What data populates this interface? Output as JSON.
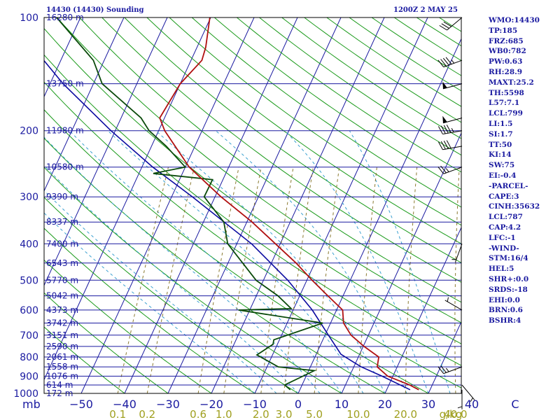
{
  "header": {
    "station_title": "14430 (14430) Sounding",
    "time_label": "1200Z  2 MAY 25"
  },
  "indices": [
    "WMO:14430",
    "TP:185",
    "FRZ:685",
    "WB0:782",
    "PW:0.63",
    "RH:28.9",
    "MAXT:25.2",
    "TH:5598",
    "L57:7.1",
    "LCL:799",
    "LI:1.5",
    "SI:1.7",
    "TT:50",
    "KI:14",
    "SW:75",
    "EI:-0.4",
    "-PARCEL-",
    "CAPE:3",
    "CINH:35632",
    "LCL:787",
    "CAP:4.2",
    "LFC:-1",
    "-WIND-",
    "STM:16/4",
    "HEL:5",
    "SHR+:0.0",
    "SRDS:-18",
    "EHI:0.0",
    "BRN:0.6",
    "BSHR:4"
  ],
  "colors": {
    "temperature": "#b01010",
    "dewpoint": "#0a4a0a",
    "parcel": "#0a0aa0",
    "isobar": "#1a1aa0",
    "isotherm": "#1a1aa0",
    "dry_adiabat": "#1a9a1a",
    "moist_adiabat": "#3aa0d0",
    "mixing_ratio": "#8a7a30",
    "labels": "#1a1aa0",
    "mixing_labels": "#a0a020"
  },
  "chart_data": {
    "type": "skew-t",
    "ylim": [
      1000,
      100
    ],
    "xlim": [
      -50,
      50
    ],
    "pressure_axis_label": "mb",
    "mixing_ratio_unit": "g/kg",
    "pressure_ticks": [
      100,
      200,
      300,
      400,
      500,
      600,
      700,
      800,
      900,
      1000
    ],
    "temperature_ticks": [
      -50,
      -40,
      -30,
      -20,
      -10,
      0,
      10,
      20,
      30,
      40,
      50
    ],
    "temperature_tick_labels": [
      "−50",
      "−40",
      "−30",
      "−20",
      "−10",
      "0",
      "10",
      "20",
      "30",
      "40",
      "C"
    ],
    "mixing_ratio_labels": [
      "0.1",
      "0.2",
      "0.6",
      "1.0",
      "2.0",
      "3.0",
      "5.0",
      "10.0",
      "20.0",
      "40.0"
    ],
    "mixing_ratio_values": [
      0.1,
      0.2,
      0.6,
      1.0,
      2.0,
      3.0,
      5.0,
      10.0,
      20.0,
      40.0
    ],
    "heights": [
      {
        "p": 100,
        "z": "16280 m"
      },
      {
        "p": 150,
        "z": "13750 m"
      },
      {
        "p": 200,
        "z": "11980 m"
      },
      {
        "p": 250,
        "z": "10580 m"
      },
      {
        "p": 300,
        "z": "9390 m"
      },
      {
        "p": 350,
        "z": "8337 m"
      },
      {
        "p": 400,
        "z": "7400 m"
      },
      {
        "p": 450,
        "z": "6543 m"
      },
      {
        "p": 500,
        "z": "5770 m"
      },
      {
        "p": 550,
        "z": "5042 m"
      },
      {
        "p": 600,
        "z": "4373 m"
      },
      {
        "p": 650,
        "z": "3742 m"
      },
      {
        "p": 700,
        "z": "3151 m"
      },
      {
        "p": 750,
        "z": "2590 m"
      },
      {
        "p": 800,
        "z": "2061 m"
      },
      {
        "p": 850,
        "z": "1558 m"
      },
      {
        "p": 900,
        "z": "1076 m"
      },
      {
        "p": 950,
        "z": "614 m"
      },
      {
        "p": 1000,
        "z": "172 m"
      }
    ],
    "temperature_profile": [
      {
        "p": 978,
        "t": 27.4
      },
      {
        "p": 950,
        "t": 24.8
      },
      {
        "p": 900,
        "t": 18.8
      },
      {
        "p": 850,
        "t": 15.4
      },
      {
        "p": 800,
        "t": 14.7
      },
      {
        "p": 750,
        "t": 10.2
      },
      {
        "p": 700,
        "t": 6.0
      },
      {
        "p": 650,
        "t": 3.0
      },
      {
        "p": 600,
        "t": 1.4
      },
      {
        "p": 550,
        "t": -3.5
      },
      {
        "p": 500,
        "t": -8.8
      },
      {
        "p": 450,
        "t": -14.3
      },
      {
        "p": 400,
        "t": -21.1
      },
      {
        "p": 350,
        "t": -28.8
      },
      {
        "p": 300,
        "t": -38.6
      },
      {
        "p": 250,
        "t": -49.1
      },
      {
        "p": 200,
        "t": -58.6
      },
      {
        "p": 185,
        "t": -61.1
      },
      {
        "p": 150,
        "t": -60.0
      },
      {
        "p": 130,
        "t": -57.5
      },
      {
        "p": 120,
        "t": -58.0
      },
      {
        "p": 100,
        "t": -60.2
      }
    ],
    "dewpoint_profile": [
      {
        "p": 978,
        "t": -2.2
      },
      {
        "p": 950,
        "t": -4.0
      },
      {
        "p": 870,
        "t": 1.3
      },
      {
        "p": 850,
        "t": -7.4
      },
      {
        "p": 790,
        "t": -13.6
      },
      {
        "p": 740,
        "t": -11.0
      },
      {
        "p": 720,
        "t": -11.3
      },
      {
        "p": 650,
        "t": -1.8
      },
      {
        "p": 600,
        "t": -22.6
      },
      {
        "p": 595,
        "t": -10.6
      },
      {
        "p": 550,
        "t": -15.0
      },
      {
        "p": 500,
        "t": -21.7
      },
      {
        "p": 400,
        "t": -32.1
      },
      {
        "p": 350,
        "t": -35.3
      },
      {
        "p": 300,
        "t": -42.5
      },
      {
        "p": 270,
        "t": -42.4
      },
      {
        "p": 260,
        "t": -56.7
      },
      {
        "p": 250,
        "t": -50.0
      },
      {
        "p": 220,
        "t": -56.6
      },
      {
        "p": 200,
        "t": -62.2
      },
      {
        "p": 185,
        "t": -65.4
      },
      {
        "p": 150,
        "t": -78.0
      },
      {
        "p": 130,
        "t": -82.5
      },
      {
        "p": 100,
        "t": -95.5
      }
    ],
    "parcel_profile": [
      {
        "p": 978,
        "t": 25.4
      },
      {
        "p": 900,
        "t": 17.5
      },
      {
        "p": 850,
        "t": 11.7
      },
      {
        "p": 787,
        "t": 5.7
      },
      {
        "p": 700,
        "t": 0.8
      },
      {
        "p": 600,
        "t": -5.6
      },
      {
        "p": 500,
        "t": -14.4
      },
      {
        "p": 400,
        "t": -26.6
      },
      {
        "p": 300,
        "t": -45.2
      },
      {
        "p": 250,
        "t": -57.5
      },
      {
        "p": 200,
        "t": -71.0
      },
      {
        "p": 150,
        "t": -87.0
      },
      {
        "p": 110,
        "t": -102.0
      }
    ],
    "wind_barbs": [
      {
        "p": 978,
        "dir": 180,
        "kt": 5
      },
      {
        "p": 950,
        "dir": 140,
        "kt": 5
      },
      {
        "p": 850,
        "dir": 250,
        "kt": 25
      },
      {
        "p": 600,
        "dir": 300,
        "kt": 5
      },
      {
        "p": 400,
        "dir": 200,
        "kt": 5
      },
      {
        "p": 250,
        "dir": 250,
        "kt": 25
      },
      {
        "p": 220,
        "dir": 260,
        "kt": 40
      },
      {
        "p": 200,
        "dir": 260,
        "kt": 45
      },
      {
        "p": 185,
        "dir": 255,
        "kt": 50
      },
      {
        "p": 150,
        "dir": 255,
        "kt": 50
      },
      {
        "p": 130,
        "dir": 250,
        "kt": 45
      },
      {
        "p": 100,
        "dir": 230,
        "kt": 30
      }
    ]
  }
}
